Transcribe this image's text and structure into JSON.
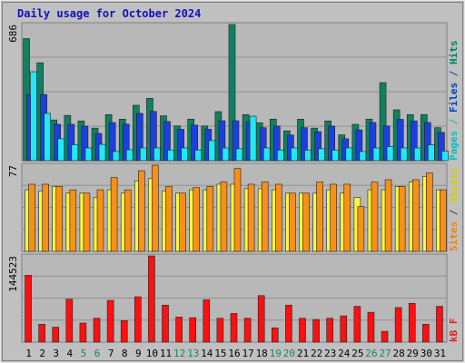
{
  "title": "Daily usage for October 2024",
  "chart_data": {
    "type": "bar",
    "title": "Daily usage for October 2024",
    "categories": [
      "1",
      "2",
      "3",
      "4",
      "5",
      "6",
      "7",
      "8",
      "9",
      "10",
      "11",
      "12",
      "13",
      "14",
      "15",
      "16",
      "17",
      "18",
      "19",
      "20",
      "21",
      "22",
      "23",
      "24",
      "25",
      "26",
      "27",
      "28",
      "29",
      "30",
      "31"
    ],
    "weekend_days": [
      "5",
      "6",
      "12",
      "13",
      "19",
      "20",
      "26",
      "27"
    ],
    "panels": [
      {
        "id": "pages-files-hits",
        "ymax_label": "686",
        "ymax": 686,
        "legend": [
          {
            "text": "Pages",
            "color": "#00c0c0"
          },
          {
            "text": "Files",
            "color": "#0040c0"
          },
          {
            "text": "Hits",
            "color": "#00805c"
          }
        ],
        "series": [
          {
            "name": "Hits",
            "color": "#108060",
            "values": [
              615,
              493,
              205,
              228,
              200,
              164,
              232,
              209,
              279,
              314,
              226,
              175,
              209,
              175,
              247,
              686,
              232,
              191,
              209,
              150,
              209,
              164,
              200,
              130,
              183,
              209,
              393,
              256,
              232,
              232,
              166
            ]
          },
          {
            "name": "Files",
            "color": "#1c40e0",
            "values": [
              333,
              333,
              183,
              183,
              174,
              137,
              192,
              184,
              238,
              248,
              197,
              158,
              179,
              158,
              201,
              201,
              193,
              166,
              174,
              129,
              166,
              146,
              174,
              110,
              155,
              192,
              175,
              208,
              200,
              192,
              142
            ]
          },
          {
            "name": "Pages",
            "color": "#20e8f8",
            "values": [
              448,
              238,
              110,
              80,
              64,
              82,
              46,
              55,
              64,
              64,
              53,
              64,
              53,
              101,
              64,
              60,
              224,
              64,
              53,
              64,
              53,
              60,
              53,
              64,
              46,
              64,
              71,
              64,
              64,
              80,
              48
            ]
          }
        ],
        "bar_colors": {
          "Hits": "#108060",
          "Files": "#1c40e0",
          "Pages": "#20e8f8"
        }
      },
      {
        "id": "sites-visits",
        "ymax_label": "77",
        "ymax": 77,
        "legend": [
          {
            "text": "Sites",
            "color": "#f08010"
          },
          {
            "text": "/",
            "color": "#404040"
          },
          {
            "text": "Visits",
            "color": "#d0d000"
          }
        ],
        "series": [
          {
            "name": "Visits",
            "color": "#f8f840",
            "values": [
              55,
              54,
              58,
              52,
              52,
              48,
              55,
              52,
              63,
              65,
              54,
              52,
              55,
              55,
              60,
              60,
              56,
              56,
              55,
              52,
              52,
              52,
              55,
              52,
              48,
              55,
              55,
              58,
              62,
              67,
              55
            ]
          },
          {
            "name": "Sites",
            "color": "#f89018",
            "values": [
              60,
              60,
              58,
              55,
              52,
              55,
              66,
              55,
              72,
              77,
              58,
              52,
              57,
              58,
              62,
              74,
              60,
              62,
              60,
              52,
              52,
              62,
              60,
              60,
              40,
              62,
              64,
              58,
              64,
              70,
              55
            ]
          }
        ]
      },
      {
        "id": "kbf",
        "ymax_label": "144523",
        "ymax": 144523,
        "legend": [
          {
            "text": "kB F",
            "color": "#e02020"
          }
        ],
        "series": [
          {
            "name": "kB F",
            "color": "#ff1010",
            "values": [
              112000,
              30000,
              25000,
              72000,
              32000,
              40000,
              70000,
              36000,
              76000,
              144523,
              62000,
              42000,
              41000,
              71000,
              40000,
              48000,
              40000,
              78000,
              24000,
              62000,
              40000,
              38000,
              40000,
              44000,
              60000,
              50000,
              18000,
              58000,
              65000,
              30000,
              60000
            ]
          }
        ]
      }
    ]
  }
}
